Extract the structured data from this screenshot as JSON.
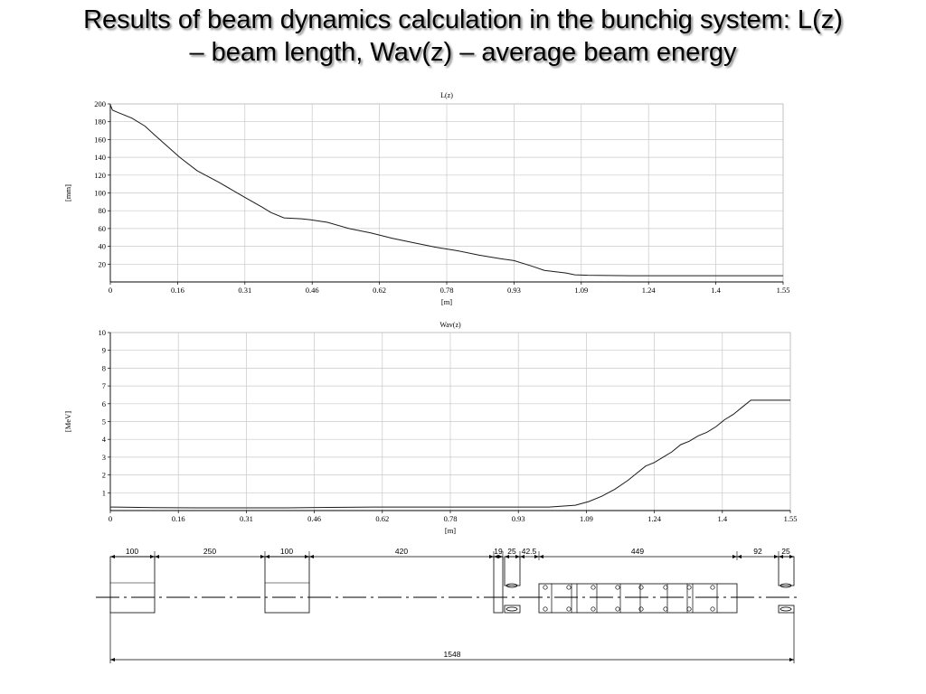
{
  "slide": {
    "title_line1": "Results of beam dynamics calculation in the bunchig system: L(z)",
    "title_line2": "– beam length, Wav(z) – average beam energy"
  },
  "chart_data": [
    {
      "type": "line",
      "title": "L(z)",
      "xlabel": "[m]",
      "ylabel": "[mm]",
      "xlim": [
        0,
        1.55
      ],
      "ylim": [
        0,
        200
      ],
      "x_ticks": [
        "0",
        "0.16",
        "0.31",
        "0.46",
        "0.62",
        "0.78",
        "0.93",
        "1.09",
        "1.24",
        "1.4",
        "1.55"
      ],
      "y_ticks": [
        "20",
        "40",
        "60",
        "80",
        "100",
        "120",
        "140",
        "160",
        "180",
        "200"
      ],
      "grid": true,
      "series": [
        {
          "x": [
            0,
            0.005,
            0.02,
            0.05,
            0.08,
            0.1,
            0.16,
            0.2,
            0.25,
            0.31,
            0.35,
            0.37,
            0.4,
            0.44,
            0.46,
            0.5,
            0.55,
            0.6,
            0.65,
            0.7,
            0.75,
            0.8,
            0.85,
            0.9,
            0.93,
            0.97,
            1.0,
            1.05,
            1.07,
            1.1,
            1.2,
            1.3,
            1.4,
            1.55
          ],
          "y": [
            199,
            193,
            190,
            184,
            175,
            166,
            140,
            125,
            112,
            95,
            84,
            78,
            72,
            71,
            70,
            67,
            60,
            55,
            49,
            44,
            39,
            35,
            30,
            26,
            24,
            18,
            13,
            10,
            8,
            7.5,
            7,
            7,
            7,
            7
          ]
        }
      ]
    },
    {
      "type": "line",
      "title": "Wav(z)",
      "xlabel": "[m]",
      "ylabel": "[MeV]",
      "xlim": [
        0,
        1.55
      ],
      "ylim": [
        0,
        10
      ],
      "x_ticks": [
        "0",
        "0.16",
        "0.31",
        "0.46",
        "0.62",
        "0.78",
        "0.93",
        "1.09",
        "1.24",
        "1.4",
        "1.55"
      ],
      "y_ticks": [
        "1",
        "2",
        "3",
        "4",
        "5",
        "6",
        "7",
        "8",
        "9",
        "10"
      ],
      "grid": true,
      "series": [
        {
          "x": [
            0,
            0.1,
            0.2,
            0.3,
            0.4,
            0.5,
            0.6,
            0.7,
            0.8,
            0.9,
            1.0,
            1.03,
            1.06,
            1.09,
            1.12,
            1.15,
            1.18,
            1.2,
            1.22,
            1.24,
            1.26,
            1.28,
            1.3,
            1.32,
            1.34,
            1.36,
            1.38,
            1.4,
            1.42,
            1.44,
            1.46,
            1.5,
            1.55
          ],
          "y": [
            0.2,
            0.17,
            0.15,
            0.15,
            0.15,
            0.18,
            0.2,
            0.2,
            0.2,
            0.2,
            0.2,
            0.25,
            0.3,
            0.5,
            0.8,
            1.2,
            1.7,
            2.1,
            2.5,
            2.7,
            3.0,
            3.3,
            3.7,
            3.9,
            4.2,
            4.4,
            4.7,
            5.1,
            5.4,
            5.8,
            6.2,
            6.2,
            6.2
          ]
        }
      ]
    }
  ],
  "schematic": {
    "dimensions": [
      "100",
      "250",
      "100",
      "420",
      "19",
      "25",
      "42.5",
      "449",
      "92",
      "25"
    ],
    "total_length": "1548"
  }
}
